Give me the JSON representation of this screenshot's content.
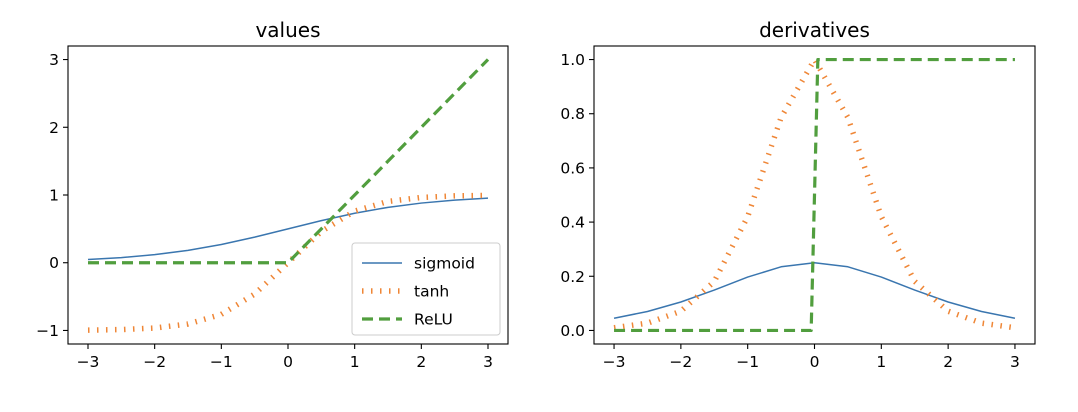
{
  "chart_data": [
    {
      "type": "line",
      "title": "values",
      "xlabel": "",
      "ylabel": "",
      "xlim": [
        -3.3,
        3.3
      ],
      "ylim": [
        -1.2,
        3.2
      ],
      "xticks": [
        -3,
        -2,
        -1,
        0,
        1,
        2,
        3
      ],
      "xtick_labels": [
        "−3",
        "−2",
        "−1",
        "0",
        "1",
        "2",
        "3"
      ],
      "yticks": [
        -1,
        0,
        1,
        2,
        3
      ],
      "ytick_labels": [
        "−1",
        "0",
        "1",
        "2",
        "3"
      ],
      "grid": false,
      "legend": {
        "placement": "lower-right",
        "entries": [
          "sigmoid",
          "tanh",
          "ReLU"
        ]
      },
      "x": [
        -3,
        -2.5,
        -2,
        -1.5,
        -1,
        -0.5,
        0,
        0.5,
        1,
        1.5,
        2,
        2.5,
        3
      ],
      "series": [
        {
          "name": "sigmoid",
          "color": "#3a76af",
          "style": "solid",
          "values": [
            0.047,
            0.076,
            0.119,
            0.182,
            0.269,
            0.378,
            0.5,
            0.622,
            0.731,
            0.818,
            0.881,
            0.924,
            0.953
          ]
        },
        {
          "name": "tanh",
          "color": "#ef8636",
          "style": "dotted",
          "values": [
            -0.995,
            -0.987,
            -0.964,
            -0.905,
            -0.762,
            -0.462,
            0,
            0.462,
            0.762,
            0.905,
            0.964,
            0.987,
            0.995
          ]
        },
        {
          "name": "ReLU",
          "color": "#519e3e",
          "style": "dashed",
          "values": [
            0,
            0,
            0,
            0,
            0,
            0,
            0,
            0.5,
            1,
            1.5,
            2,
            2.5,
            3
          ]
        }
      ]
    },
    {
      "type": "line",
      "title": "derivatives",
      "xlabel": "",
      "ylabel": "",
      "xlim": [
        -3.3,
        3.3
      ],
      "ylim": [
        -0.05,
        1.05
      ],
      "xticks": [
        -3,
        -2,
        -1,
        0,
        1,
        2,
        3
      ],
      "xtick_labels": [
        "−3",
        "−2",
        "−1",
        "0",
        "1",
        "2",
        "3"
      ],
      "yticks": [
        0,
        0.2,
        0.4,
        0.6,
        0.8,
        1.0
      ],
      "ytick_labels": [
        "0.0",
        "0.2",
        "0.4",
        "0.6",
        "0.8",
        "1.0"
      ],
      "grid": false,
      "x": [
        -3,
        -2.5,
        -2,
        -1.5,
        -1,
        -0.5,
        0,
        0.5,
        1,
        1.5,
        2,
        2.5,
        3
      ],
      "series": [
        {
          "name": "sigmoid",
          "color": "#3a76af",
          "style": "solid",
          "values": [
            0.045,
            0.07,
            0.105,
            0.149,
            0.197,
            0.235,
            0.25,
            0.235,
            0.197,
            0.149,
            0.105,
            0.07,
            0.045
          ]
        },
        {
          "name": "tanh",
          "color": "#ef8636",
          "style": "dotted",
          "values": [
            0.01,
            0.027,
            0.071,
            0.181,
            0.42,
            0.786,
            1.0,
            0.786,
            0.42,
            0.181,
            0.071,
            0.027,
            0.01
          ]
        },
        {
          "name": "ReLU",
          "color": "#519e3e",
          "style": "dashed",
          "x": [
            -3,
            -0.05,
            0.05,
            3
          ],
          "values": [
            0,
            0,
            1,
            1
          ]
        }
      ]
    }
  ]
}
